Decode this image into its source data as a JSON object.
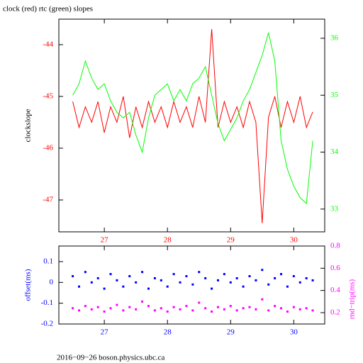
{
  "chart_data": [
    {
      "type": "line",
      "title": "clock (red) rtc (green) slopes",
      "ylabel": "clockslope",
      "x": [
        26.5,
        26.6,
        26.7,
        26.8,
        26.9,
        27.0,
        27.1,
        27.2,
        27.3,
        27.4,
        27.5,
        27.6,
        27.7,
        27.8,
        27.9,
        28.0,
        28.1,
        28.2,
        28.3,
        28.4,
        28.5,
        28.6,
        28.7,
        28.8,
        28.9,
        29.0,
        29.1,
        29.2,
        29.3,
        29.4,
        29.5,
        29.6,
        29.7,
        29.8,
        29.9,
        30.0,
        30.1,
        30.2,
        30.3
      ],
      "series": [
        {
          "color": "#ff0000",
          "values": [
            -45.1,
            -45.6,
            -45.2,
            -45.5,
            -45.1,
            -45.7,
            -45.2,
            -45.5,
            -45.0,
            -45.8,
            -45.2,
            -45.6,
            -45.1,
            -45.5,
            -45.2,
            -45.6,
            -45.1,
            -45.5,
            -45.2,
            -45.6,
            -45.0,
            -45.5,
            -43.7,
            -45.6,
            -45.1,
            -45.5,
            -45.2,
            -45.6,
            -45.1,
            -45.5,
            -47.45,
            -45.4,
            -45.0,
            -45.6,
            -45.1,
            -45.5,
            -45.0,
            -45.6,
            -45.3
          ]
        },
        {
          "color": "#00ff00",
          "axis": "y2",
          "values": [
            35.0,
            35.2,
            35.6,
            35.3,
            35.1,
            35.2,
            34.9,
            34.7,
            34.6,
            34.7,
            34.3,
            34.0,
            34.6,
            35.0,
            35.1,
            35.2,
            34.9,
            35.1,
            34.9,
            35.2,
            35.3,
            35.5,
            35.0,
            34.5,
            34.2,
            34.4,
            34.6,
            34.9,
            35.1,
            35.4,
            35.7,
            36.1,
            35.6,
            34.2,
            33.7,
            33.4,
            33.2,
            33.1,
            34.2
          ]
        }
      ],
      "xlim": [
        26.28,
        30.49
      ],
      "xticks": [
        27,
        28,
        29,
        30
      ],
      "ylim": [
        -47.616,
        -43.507
      ],
      "yticks": [
        -47,
        -46,
        -45,
        -44
      ],
      "y2lim": [
        32.6,
        36.336
      ],
      "y2ticks": [
        33,
        34,
        35,
        36
      ],
      "axis_colors": {
        "x": "#ff0000",
        "y": "#ff0000",
        "y2": "#00ff00"
      }
    },
    {
      "type": "scatter",
      "ylabel": "offset(ms)",
      "y2label": "rnd−trip(ms)",
      "x": [
        26.5,
        26.6,
        26.7,
        26.8,
        26.9,
        27.0,
        27.1,
        27.2,
        27.3,
        27.4,
        27.5,
        27.6,
        27.7,
        27.8,
        27.9,
        28.0,
        28.1,
        28.2,
        28.3,
        28.4,
        28.5,
        28.6,
        28.7,
        28.8,
        28.9,
        29.0,
        29.1,
        29.2,
        29.3,
        29.4,
        29.5,
        29.6,
        29.7,
        29.8,
        29.9,
        30.0,
        30.1,
        30.2,
        30.3
      ],
      "series": [
        {
          "color": "#0000ff",
          "values": [
            0.03,
            -0.02,
            0.05,
            0.0,
            0.02,
            -0.03,
            0.04,
            0.01,
            -0.02,
            0.03,
            0.0,
            0.05,
            -0.03,
            0.02,
            0.01,
            -0.02,
            0.04,
            0.0,
            0.03,
            -0.01,
            0.05,
            0.02,
            -0.03,
            0.01,
            0.04,
            0.0,
            0.02,
            -0.02,
            0.03,
            0.01,
            0.06,
            -0.01,
            0.02,
            0.04,
            -0.02,
            0.03,
            0.0,
            0.02,
            0.01
          ]
        },
        {
          "color": "#ff00ff",
          "axis": "y2",
          "values": [
            0.24,
            0.22,
            0.26,
            0.23,
            0.25,
            0.21,
            0.24,
            0.27,
            0.22,
            0.25,
            0.23,
            0.3,
            0.26,
            0.22,
            0.24,
            0.21,
            0.25,
            0.23,
            0.26,
            0.22,
            0.29,
            0.24,
            0.21,
            0.25,
            0.23,
            0.26,
            0.22,
            0.24,
            0.25,
            0.23,
            0.32,
            0.22,
            0.26,
            0.24,
            0.21,
            0.25,
            0.23,
            0.24,
            0.22
          ]
        }
      ],
      "xlim": [
        26.28,
        30.49
      ],
      "xticks": [
        27,
        28,
        29,
        30
      ],
      "ylim": [
        -0.2,
        0.175
      ],
      "yticks": [
        -0.2,
        -0.1,
        0,
        0.1
      ],
      "y2lim": [
        0.098,
        0.8
      ],
      "y2ticks": [
        0.2,
        0.4,
        0.6,
        0.8
      ],
      "axis_colors": {
        "x": "#0000ff",
        "y": "#0000ff",
        "y2": "#ff00ff"
      }
    }
  ],
  "footer": "2016−09−26 boson.physics.ubc.ca"
}
